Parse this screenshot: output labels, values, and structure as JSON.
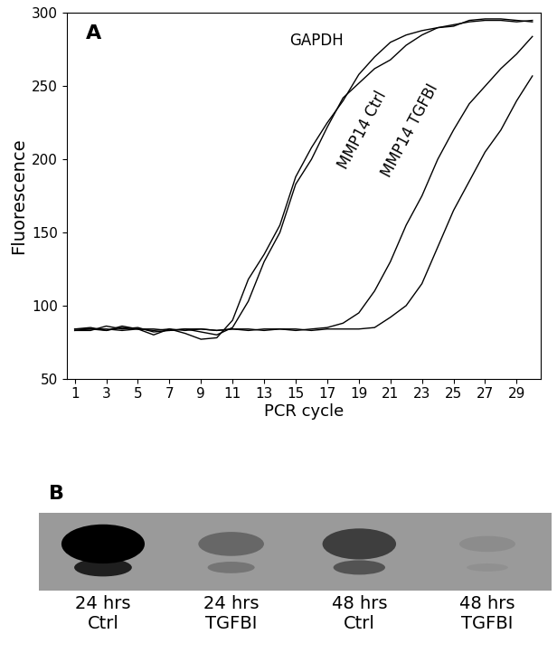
{
  "chart_data": [
    {
      "type": "line",
      "title": "A",
      "x_label": "PCR cycle",
      "y_label": "Fluorescence",
      "x": [
        1,
        2,
        3,
        4,
        5,
        6,
        7,
        8,
        9,
        10,
        11,
        12,
        13,
        14,
        15,
        16,
        17,
        18,
        19,
        20,
        21,
        22,
        23,
        24,
        25,
        26,
        27,
        28,
        29,
        30
      ],
      "series": [
        {
          "name": "GAPDH",
          "color": "#000000",
          "values": [
            84,
            85,
            83,
            86,
            84,
            80,
            84,
            81,
            77,
            78,
            90,
            118,
            135,
            155,
            188,
            208,
            225,
            240,
            258,
            270,
            280,
            285,
            288,
            290,
            292,
            294,
            295,
            295,
            294,
            295
          ]
        },
        {
          "color": "#000000",
          "values": [
            83,
            83,
            86,
            84,
            85,
            82,
            83,
            84,
            82,
            80,
            85,
            103,
            130,
            150,
            183,
            200,
            222,
            242,
            252,
            262,
            268,
            278,
            285,
            290,
            291,
            295,
            296,
            296,
            295,
            294
          ]
        },
        {
          "name": "MMP14 Ctrl",
          "color": "#000000",
          "values": [
            84,
            84,
            83,
            85,
            84,
            83,
            84,
            83,
            84,
            83,
            84,
            83,
            84,
            84,
            83,
            84,
            85,
            88,
            95,
            110,
            130,
            155,
            175,
            200,
            220,
            238,
            250,
            262,
            272,
            284
          ]
        },
        {
          "name": "MMP14 TGFBI",
          "color": "#000000",
          "values": [
            83,
            84,
            84,
            83,
            84,
            84,
            83,
            84,
            84,
            83,
            84,
            84,
            83,
            84,
            84,
            83,
            84,
            84,
            84,
            85,
            92,
            100,
            115,
            140,
            165,
            185,
            205,
            220,
            240,
            257
          ]
        }
      ],
      "xlim": [
        0.5,
        30.5
      ],
      "xticks": [
        1,
        3,
        5,
        7,
        9,
        11,
        13,
        15,
        17,
        19,
        21,
        23,
        25,
        27,
        29
      ],
      "ylim": [
        50,
        300
      ],
      "yticks": [
        50,
        100,
        150,
        200,
        250,
        300
      ],
      "grid": false
    },
    {
      "type": "blot",
      "title": "B",
      "categories": [
        "24 hrs\nCtrl",
        "24 hrs\nTGFBI",
        "48 hrs\nCtrl",
        "48 hrs\nTGFBI"
      ],
      "values": [
        1.0,
        0.45,
        0.7,
        0.15
      ],
      "tick_labels": "x"
    }
  ]
}
